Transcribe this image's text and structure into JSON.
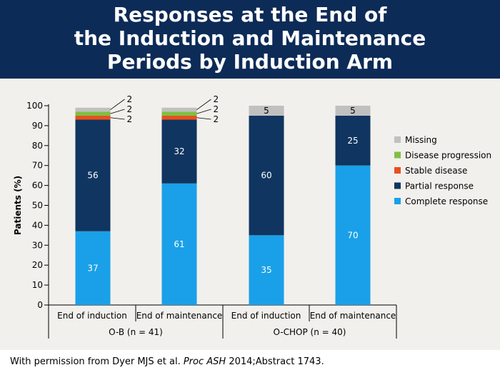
{
  "title_lines": [
    "Responses at the End of",
    "the Induction and Maintenance",
    "Periods by Induction Arm"
  ],
  "citation": {
    "prefix": "With permission from Dyer MJS et al. ",
    "journal": "Proc ASH",
    "suffix": " 2014;Abstract 1743."
  },
  "colors": {
    "title_bg": "#0d2b57",
    "band_bg": "#f2f0ec",
    "Missing": "#c0c0c0",
    "Disease progression": "#7dc142",
    "Stable disease": "#e8501e",
    "Partial response": "#0f3560",
    "Complete response": "#1aa0e8"
  },
  "chart_data": {
    "type": "bar",
    "stacked": true,
    "ylabel": "Patients (%)",
    "ylim": [
      0,
      100
    ],
    "yticks": [
      0,
      10,
      20,
      30,
      40,
      50,
      60,
      70,
      80,
      90,
      100
    ],
    "categories": [
      "End of induction",
      "End of maintenance",
      "End of induction",
      "End of maintenance"
    ],
    "groups": [
      {
        "label": "O-B (n = 41)",
        "categories": [
          0,
          1
        ]
      },
      {
        "label": "O-CHOP (n = 40)",
        "categories": [
          2,
          3
        ]
      }
    ],
    "series": [
      {
        "name": "Complete response",
        "values": [
          37,
          61,
          35,
          70
        ]
      },
      {
        "name": "Partial response",
        "values": [
          56,
          32,
          60,
          25
        ]
      },
      {
        "name": "Stable disease",
        "values": [
          2,
          2,
          0,
          0
        ]
      },
      {
        "name": "Disease progression",
        "values": [
          2,
          2,
          0,
          0
        ]
      },
      {
        "name": "Missing",
        "values": [
          2,
          2,
          5,
          5
        ]
      }
    ],
    "legend_order": [
      "Missing",
      "Disease progression",
      "Stable disease",
      "Partial response",
      "Complete response"
    ],
    "legend_position": "right",
    "grid": false
  }
}
